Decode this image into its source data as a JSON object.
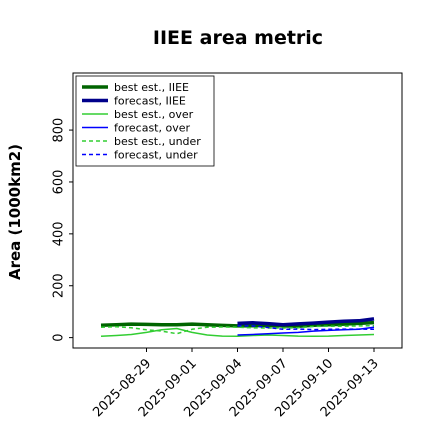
{
  "chart_data": {
    "type": "line",
    "title": "IIEE area metric",
    "xlabel": "",
    "ylabel": "Area (1000km2)",
    "ylim": [
      -40,
      1020
    ],
    "yticks": [
      0,
      200,
      400,
      600,
      800
    ],
    "x": [
      "2025-08-26",
      "2025-08-27",
      "2025-08-28",
      "2025-08-29",
      "2025-08-30",
      "2025-08-31",
      "2025-09-01",
      "2025-09-02",
      "2025-09-03",
      "2025-09-04",
      "2025-09-05",
      "2025-09-06",
      "2025-09-07",
      "2025-09-08",
      "2025-09-09",
      "2025-09-10",
      "2025-09-11",
      "2025-09-12",
      "2025-09-13"
    ],
    "xticks": [
      {
        "label": "2025-08-29",
        "color": "#000000"
      },
      {
        "label": "2025-09-01",
        "color": "#000000"
      },
      {
        "label": "2025-09-04",
        "color": "#228b22"
      },
      {
        "label": "2025-09-07",
        "color": "#000000"
      },
      {
        "label": "2025-09-10",
        "color": "#000000"
      },
      {
        "label": "2025-09-13",
        "color": "#000000"
      }
    ],
    "grid": false,
    "legend_position": "upper-left",
    "series": [
      {
        "name": "best est., IIEE",
        "color": "#006400",
        "style": "solid",
        "width": 3.5,
        "values": [
          48,
          50,
          52,
          51,
          50,
          50,
          52,
          50,
          47,
          45,
          46,
          47,
          45,
          44,
          48,
          50,
          52,
          55,
          58
        ]
      },
      {
        "name": "forecast, IIEE",
        "color": "#00008b",
        "style": "solid",
        "width": 3.5,
        "values": [
          null,
          null,
          null,
          null,
          null,
          null,
          null,
          null,
          null,
          55,
          57,
          54,
          50,
          53,
          56,
          60,
          63,
          65,
          72
        ]
      },
      {
        "name": "best est., over",
        "color": "#32cd32",
        "style": "solid",
        "width": 1.5,
        "values": [
          5,
          8,
          12,
          20,
          30,
          35,
          20,
          10,
          6,
          5,
          8,
          10,
          8,
          6,
          5,
          6,
          8,
          10,
          12
        ]
      },
      {
        "name": "forecast, over",
        "color": "#0000ff",
        "style": "solid",
        "width": 1.5,
        "values": [
          null,
          null,
          null,
          null,
          null,
          null,
          null,
          null,
          null,
          10,
          12,
          15,
          18,
          20,
          25,
          28,
          30,
          32,
          40
        ]
      },
      {
        "name": "best est., under",
        "color": "#32cd32",
        "style": "dashed",
        "width": 1.5,
        "values": [
          40,
          42,
          38,
          30,
          25,
          15,
          32,
          40,
          41,
          40,
          38,
          37,
          37,
          38,
          43,
          44,
          44,
          45,
          46
        ]
      },
      {
        "name": "forecast, under",
        "color": "#0000ff",
        "style": "dashed",
        "width": 1.5,
        "values": [
          null,
          null,
          null,
          null,
          null,
          null,
          null,
          null,
          null,
          45,
          45,
          39,
          32,
          33,
          31,
          32,
          33,
          33,
          32
        ]
      }
    ]
  }
}
